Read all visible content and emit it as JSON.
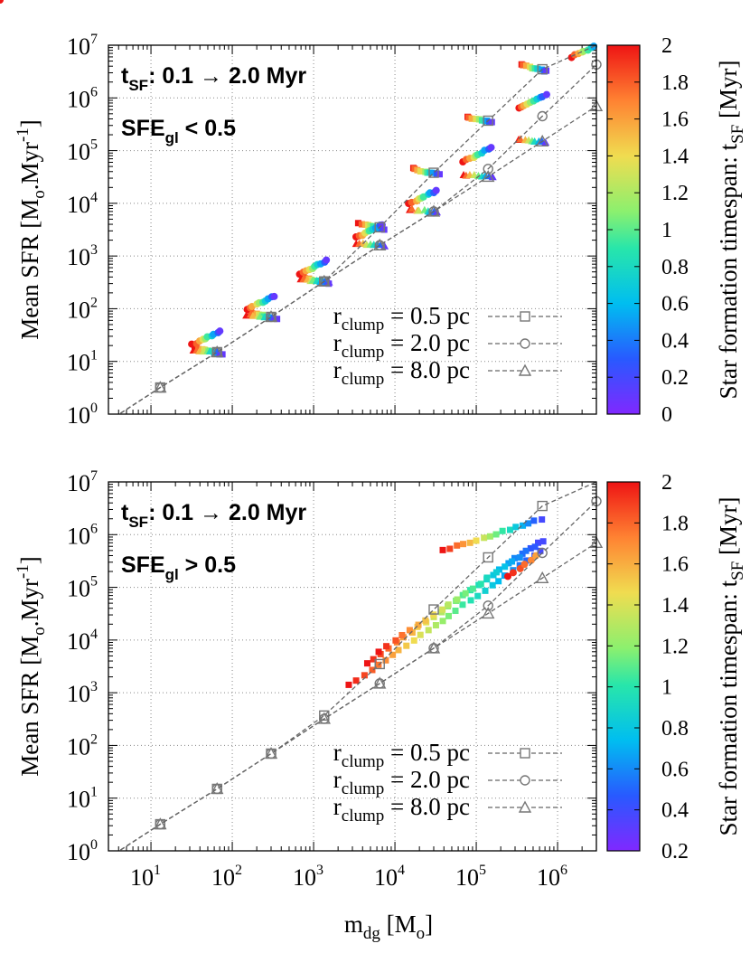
{
  "chart_data": [
    {
      "type": "scatter",
      "panel": "top",
      "xscale": "log",
      "yscale": "log",
      "xlim": [
        3,
        3000000
      ],
      "ylim": [
        1,
        10000000
      ],
      "grid": true,
      "annotation": {
        "line1_main": "t",
        "line1_sub": "SF",
        "line1_rest": ": 0.1 → 2.0 Myr",
        "line2_main": "SFE",
        "line2_sub": "gl",
        "line2_rest": " < 0.5"
      },
      "ylabel": {
        "main": "Mean SFR [M",
        "sub1": "o",
        "mid": ".Myr",
        "sup": "-1",
        "end": "]"
      },
      "legend_position": "bottom-right",
      "colorbar": {
        "label_main": "Star formation timespan: t",
        "label_sub": "SF",
        "label_end": " [Myr]",
        "min": 0,
        "max": 2,
        "ticks": [
          "0",
          "0.2",
          "0.4",
          "0.6",
          "0.8",
          "1",
          "1.2",
          "1.4",
          "1.6",
          "1.8",
          "2"
        ]
      },
      "series": [
        {
          "name_main": "r",
          "name_sub": "clump",
          "name_rest": " = 0.5 pc",
          "marker": "square",
          "x": [
            13,
            65,
            300,
            1350,
            6500,
            30000,
            140000,
            650000
          ],
          "y": [
            3.2,
            15,
            70,
            330,
            3500,
            38000,
            370000,
            3500000
          ]
        },
        {
          "name_main": "r",
          "name_sub": "clump",
          "name_rest": " = 2.0 pc",
          "marker": "circle",
          "x": [
            13,
            65,
            300,
            1350,
            6500,
            30000,
            140000,
            650000,
            3000000
          ],
          "y": [
            3.2,
            15,
            70,
            330,
            1600,
            7000,
            45000,
            450000,
            4300000
          ]
        },
        {
          "name_main": "r",
          "name_sub": "clump",
          "name_rest": " = 8.0 pc",
          "marker": "triangle",
          "x": [
            13,
            65,
            300,
            1350,
            6500,
            30000,
            140000,
            650000,
            3000000
          ],
          "y": [
            3.2,
            15,
            70,
            330,
            1600,
            7000,
            32000,
            150000,
            700000
          ]
        }
      ]
    },
    {
      "type": "scatter",
      "panel": "bottom",
      "xscale": "log",
      "yscale": "log",
      "xlim": [
        3,
        3000000
      ],
      "ylim": [
        1,
        10000000
      ],
      "grid": true,
      "annotation": {
        "line1_main": "t",
        "line1_sub": "SF",
        "line1_rest": ": 0.1 → 2.0 Myr",
        "line2_main": "SFE",
        "line2_sub": "gl",
        "line2_rest": " > 0.5"
      },
      "xlabel": {
        "main": "m",
        "sub1": "dg",
        "mid": " [M",
        "sub2": "o",
        "end": "]"
      },
      "ylabel": {
        "main": "Mean SFR [M",
        "sub1": "o",
        "mid": ".Myr",
        "sup": "-1",
        "end": "]"
      },
      "legend_position": "bottom-right",
      "colorbar": {
        "label_main": "Star formation timespan: t",
        "label_sub": "SF",
        "label_end": " [Myr]",
        "min": 0.2,
        "max": 2,
        "ticks": [
          "0.2",
          "0.4",
          "0.6",
          "0.8",
          "1",
          "1.2",
          "1.4",
          "1.6",
          "1.8",
          "2"
        ]
      },
      "series": [
        {
          "name_main": "r",
          "name_sub": "clump",
          "name_rest": " = 0.5 pc",
          "marker": "square",
          "x": [
            13,
            65,
            300,
            1350,
            6500,
            30000,
            140000,
            650000
          ],
          "y": [
            3.2,
            15,
            70,
            370,
            3500,
            38000,
            370000,
            3500000
          ]
        },
        {
          "name_main": "r",
          "name_sub": "clump",
          "name_rest": " = 2.0 pc",
          "marker": "circle",
          "x": [
            13,
            65,
            300,
            1350,
            6500,
            30000,
            140000,
            650000,
            3000000
          ],
          "y": [
            3.2,
            15,
            70,
            320,
            1500,
            7000,
            45000,
            450000,
            4300000
          ]
        },
        {
          "name_main": "r",
          "name_sub": "clump",
          "name_rest": " = 8.0 pc",
          "marker": "triangle",
          "x": [
            13,
            65,
            300,
            1350,
            6500,
            30000,
            140000,
            650000,
            3000000
          ],
          "y": [
            3.2,
            15,
            70,
            320,
            1500,
            7000,
            32000,
            150000,
            700000
          ]
        }
      ]
    }
  ]
}
